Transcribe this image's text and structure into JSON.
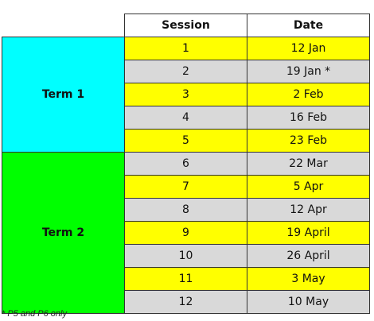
{
  "header": {
    "col_session": "Session",
    "col_date": "Date"
  },
  "terms": [
    {
      "label": "Term 1",
      "color": "#00ffff",
      "rows": [
        {
          "session": "1",
          "date": "12 Jan",
          "bg": "#ffff00"
        },
        {
          "session": "2",
          "date": "19 Jan *",
          "bg": "#d9d9d9"
        },
        {
          "session": "3",
          "date": "2 Feb",
          "bg": "#ffff00"
        },
        {
          "session": "4",
          "date": "16 Feb",
          "bg": "#d9d9d9"
        },
        {
          "session": "5",
          "date": "23 Feb",
          "bg": "#ffff00"
        }
      ]
    },
    {
      "label": "Term 2",
      "color": "#00ff00",
      "rows": [
        {
          "session": "6",
          "date": "22 Mar",
          "bg": "#d9d9d9"
        },
        {
          "session": "7",
          "date": "5 Apr",
          "bg": "#ffff00"
        },
        {
          "session": "8",
          "date": "12 Apr",
          "bg": "#d9d9d9"
        },
        {
          "session": "9",
          "date": "19 April",
          "bg": "#ffff00"
        },
        {
          "session": "10",
          "date": "26 April",
          "bg": "#d9d9d9"
        },
        {
          "session": "11",
          "date": "3 May",
          "bg": "#ffff00"
        },
        {
          "session": "12",
          "date": "10 May",
          "bg": "#d9d9d9"
        }
      ]
    }
  ],
  "footnote": "* P5 and P6 only"
}
